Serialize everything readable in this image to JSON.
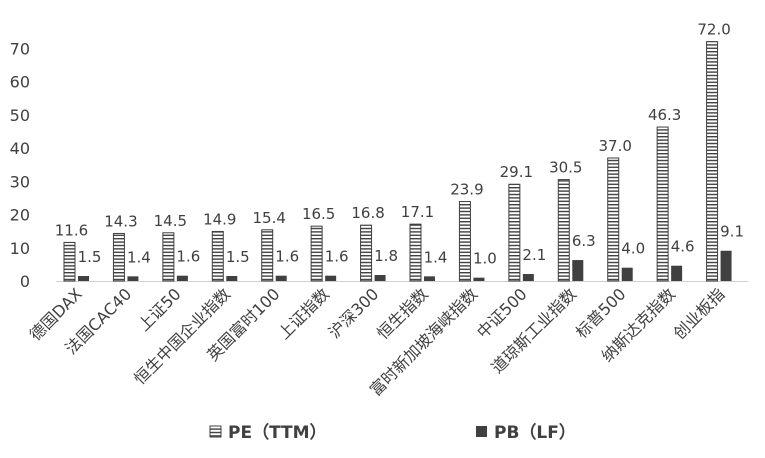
{
  "chart_data": {
    "type": "bar",
    "categories": [
      "德国DAX",
      "法国CAC40",
      "上证50",
      "恒生中国企业指数",
      "英国富时100",
      "上证指数",
      "沪深300",
      "恒生指数",
      "富时新加坡海峡指数",
      "中证500",
      "道琼斯工业指数",
      "标普500",
      "纳斯达克指数",
      "创业板指"
    ],
    "series": [
      {
        "name": "PE（TTM）",
        "values": [
          11.6,
          14.3,
          14.5,
          14.9,
          15.4,
          16.5,
          16.8,
          17.1,
          23.9,
          29.1,
          30.5,
          37.0,
          46.3,
          72.0
        ],
        "labels": [
          "11.6",
          "14.3",
          "14.5",
          "14.9",
          "15.4",
          "16.5",
          "16.8",
          "17.1",
          "23.9",
          "29.1",
          "30.5",
          "37.0",
          "46.3",
          "72.0"
        ],
        "pattern": "horizontal-stripes",
        "color": "#404040"
      },
      {
        "name": "PB（LF）",
        "values": [
          1.5,
          1.4,
          1.6,
          1.5,
          1.6,
          1.6,
          1.8,
          1.4,
          1.0,
          2.1,
          6.3,
          4.0,
          4.6,
          9.1
        ],
        "labels": [
          "1.5",
          "1.4",
          "1.6",
          "1.5",
          "1.6",
          "1.6",
          "1.8",
          "1.4",
          "1.0",
          "2.1",
          "6.3",
          "4.0",
          "4.6",
          "9.1"
        ],
        "pattern": "solid",
        "color": "#404040"
      }
    ],
    "y_ticks": [
      "0",
      "10",
      "20",
      "30",
      "40",
      "50",
      "60",
      "70"
    ],
    "ylim": [
      0,
      80
    ],
    "grid": false,
    "legend": "bottom",
    "title": "",
    "xlabel": "",
    "ylabel": ""
  }
}
